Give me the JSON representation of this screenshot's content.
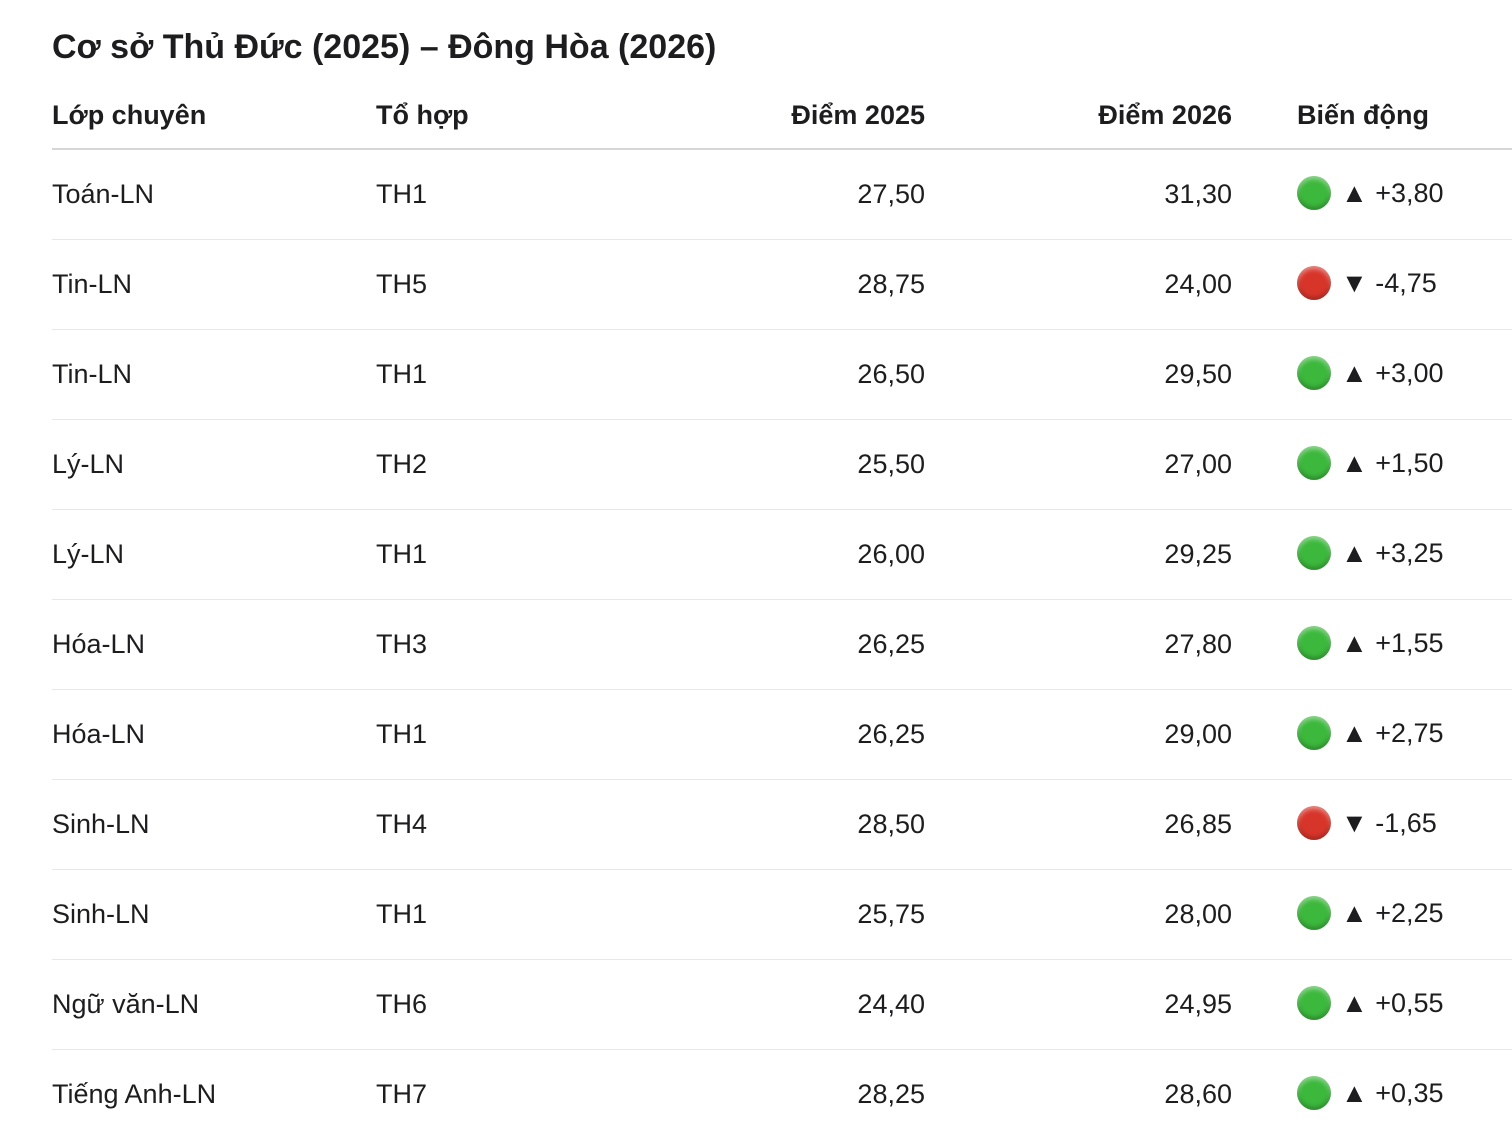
{
  "title": "Cơ sở Thủ Đức (2025) – Đông Hòa (2026)",
  "table": {
    "header": [
      "Lớp chuyên",
      "Tổ hợp",
      "Điểm 2025",
      "Điểm 2026",
      "Biến động"
    ],
    "rows": [
      [
        "Toán-LN",
        "TH1",
        "27,50",
        "31,30",
        "▲ +3,80"
      ],
      [
        "Tin-LN",
        "TH5",
        "28,75",
        "24,00",
        "▼ -4,75"
      ],
      [
        "Tin-LN",
        "TH1",
        "26,50",
        "29,50",
        "▲ +3,00"
      ],
      [
        "Lý-LN",
        "TH2",
        "25,50",
        "27,00",
        "▲ +1,50"
      ],
      [
        "Lý-LN",
        "TH1",
        "26,00",
        "29,25",
        "▲ +3,25"
      ],
      [
        "Hóa-LN",
        "TH3",
        "26,25",
        "27,80",
        "▲ +1,55"
      ],
      [
        "Hóa-LN",
        "TH1",
        "26,25",
        "29,00",
        "▲ +2,75"
      ],
      [
        "Sinh-LN",
        "TH4",
        "28,50",
        "26,85",
        "▼ -1,65"
      ],
      [
        "Sinh-LN",
        "TH1",
        "25,75",
        "28,00",
        "▲ +2,25"
      ],
      [
        "Ngữ văn-LN",
        "TH6",
        "24,40",
        "24,95",
        "▲ +0,55"
      ],
      [
        "Tiếng Anh-LN",
        "TH7",
        "28,25",
        "28,60",
        "▲ +0,35"
      ]
    ],
    "indicator_colors": [
      "#3cb83c",
      "#d8352a",
      "#3cb83c",
      "#3cb83c",
      "#3cb83c",
      "#3cb83c",
      "#3cb83c",
      "#d8352a",
      "#3cb83c",
      "#3cb83c",
      "#3cb83c"
    ]
  }
}
